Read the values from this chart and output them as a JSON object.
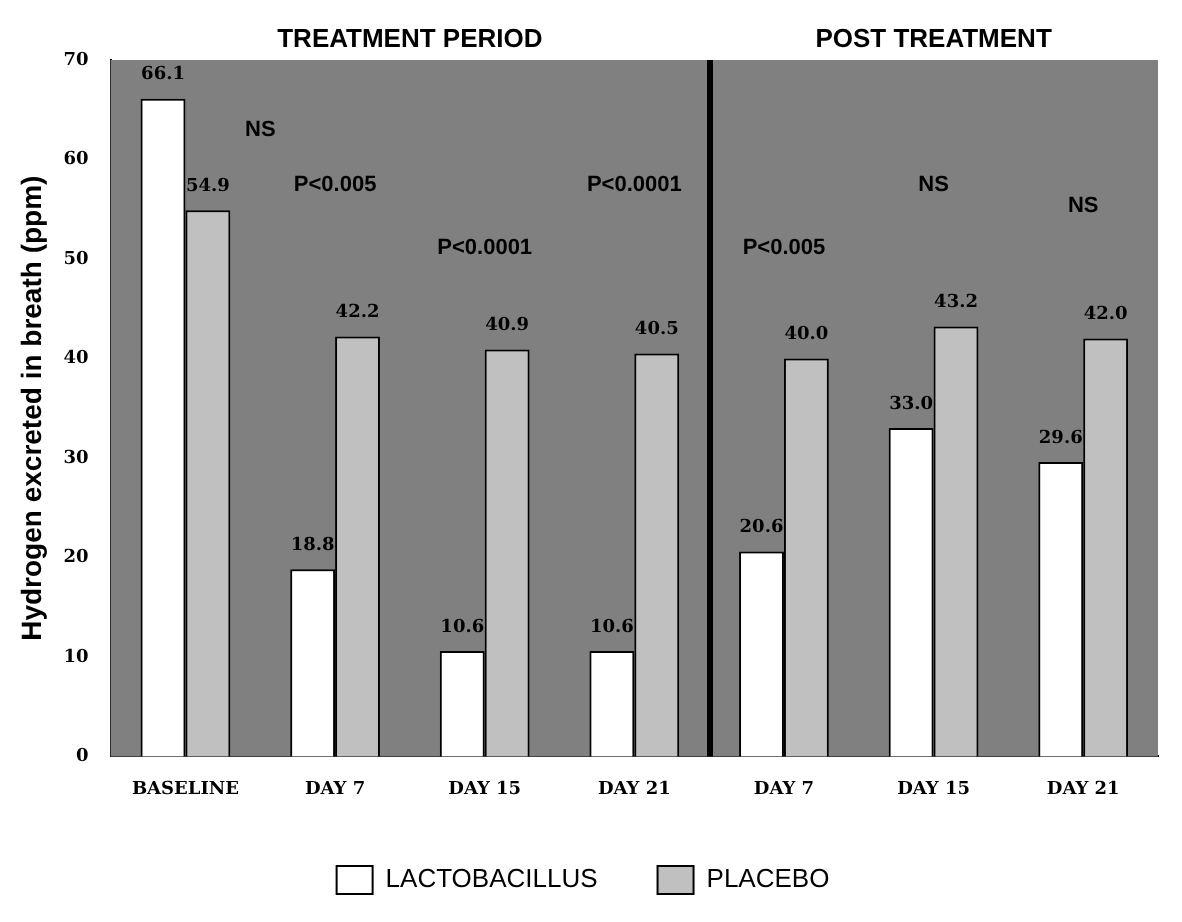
{
  "chart_data": {
    "type": "bar",
    "ylabel": "Hydrogen excreted in breath (ppm)",
    "categories": [
      "BASELINE",
      "DAY 7",
      "DAY 15",
      "DAY 21",
      "DAY 7",
      "DAY 15",
      "DAY 21"
    ],
    "series": [
      {
        "name": "LACTOBACILLUS",
        "color": "#ffffff",
        "values": [
          66.1,
          18.8,
          10.6,
          10.6,
          20.6,
          33.0,
          29.6
        ],
        "value_labels": [
          "66.1",
          "18.8",
          "10.6",
          "10.6",
          "20.6",
          "33.0",
          "29.6"
        ]
      },
      {
        "name": "PLACEBO",
        "color": "#c0c0c0",
        "values": [
          54.9,
          42.2,
          40.9,
          40.5,
          40.0,
          43.2,
          42.0
        ],
        "value_labels": [
          "54.9",
          "42.2",
          "40.9",
          "40.5",
          "40.0",
          "43.2",
          "42.0"
        ]
      }
    ],
    "ylim": [
      0,
      70
    ],
    "yticks": [
      0,
      10,
      20,
      30,
      40,
      50,
      60,
      70
    ],
    "grid": false,
    "legend": "bottom",
    "annotations": [
      "TREATMENT PERIOD",
      "POST TREATMENT",
      "NS",
      "P<0.005",
      "P<0.0001",
      "P<0.0001",
      "P<0.005",
      "NS",
      "NS"
    ]
  }
}
